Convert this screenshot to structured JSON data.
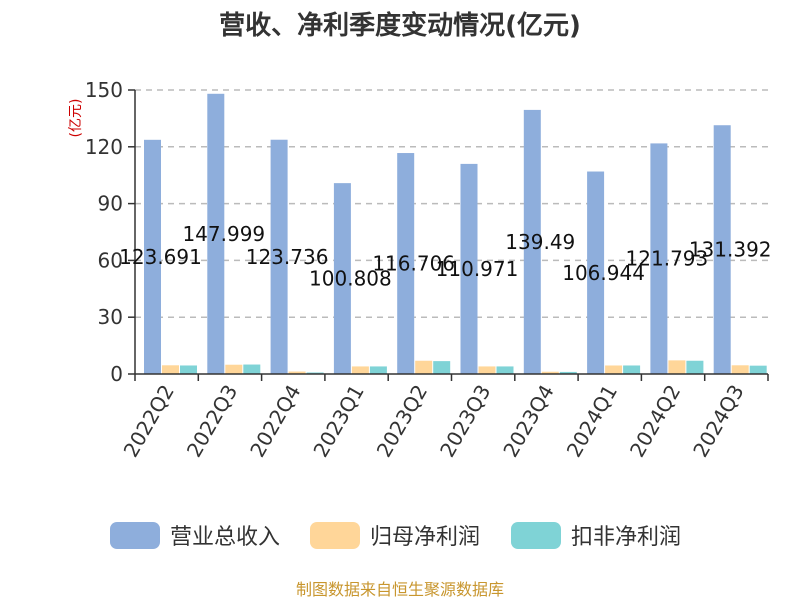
{
  "source": "制图数据来自恒生聚源数据库",
  "colors": {
    "revenue": "#8eaedc",
    "net_profit": "#ffd699",
    "deducted_net_profit": "#7fd3d6",
    "axis": "#333333",
    "grid": "#bbbbbb"
  },
  "chart_data": {
    "type": "bar",
    "title": "营收、净利季度变动情况(亿元)",
    "ylabel": "(亿元)",
    "xlabel": "",
    "ylim": [
      0,
      150
    ],
    "yticks": [
      0,
      30,
      60,
      90,
      120,
      150
    ],
    "grid": "horizontal-dashed",
    "legend_position": "bottom",
    "categories": [
      "2022Q2",
      "2022Q3",
      "2022Q4",
      "2023Q1",
      "2023Q2",
      "2023Q3",
      "2023Q4",
      "2024Q1",
      "2024Q2",
      "2024Q3"
    ],
    "series": [
      {
        "name": "营业总收入",
        "values": [
          123.691,
          147.999,
          123.736,
          100.808,
          116.706,
          110.971,
          139.49,
          106.944,
          121.793,
          131.392
        ]
      },
      {
        "name": "归母净利润",
        "values": [
          4.6,
          4.9,
          1.3,
          4.0,
          7.0,
          4.0,
          1.2,
          4.5,
          7.2,
          4.6
        ]
      },
      {
        "name": "扣非净利润",
        "values": [
          4.5,
          5.0,
          0.8,
          4.0,
          6.8,
          4.0,
          1.1,
          4.5,
          7.0,
          4.4
        ]
      }
    ],
    "data_labels": [
      "123.691",
      "147.999",
      "123.736",
      "100.808",
      "116.706",
      "110.971",
      "139.49",
      "106.944",
      "121.793",
      "131.392"
    ]
  }
}
